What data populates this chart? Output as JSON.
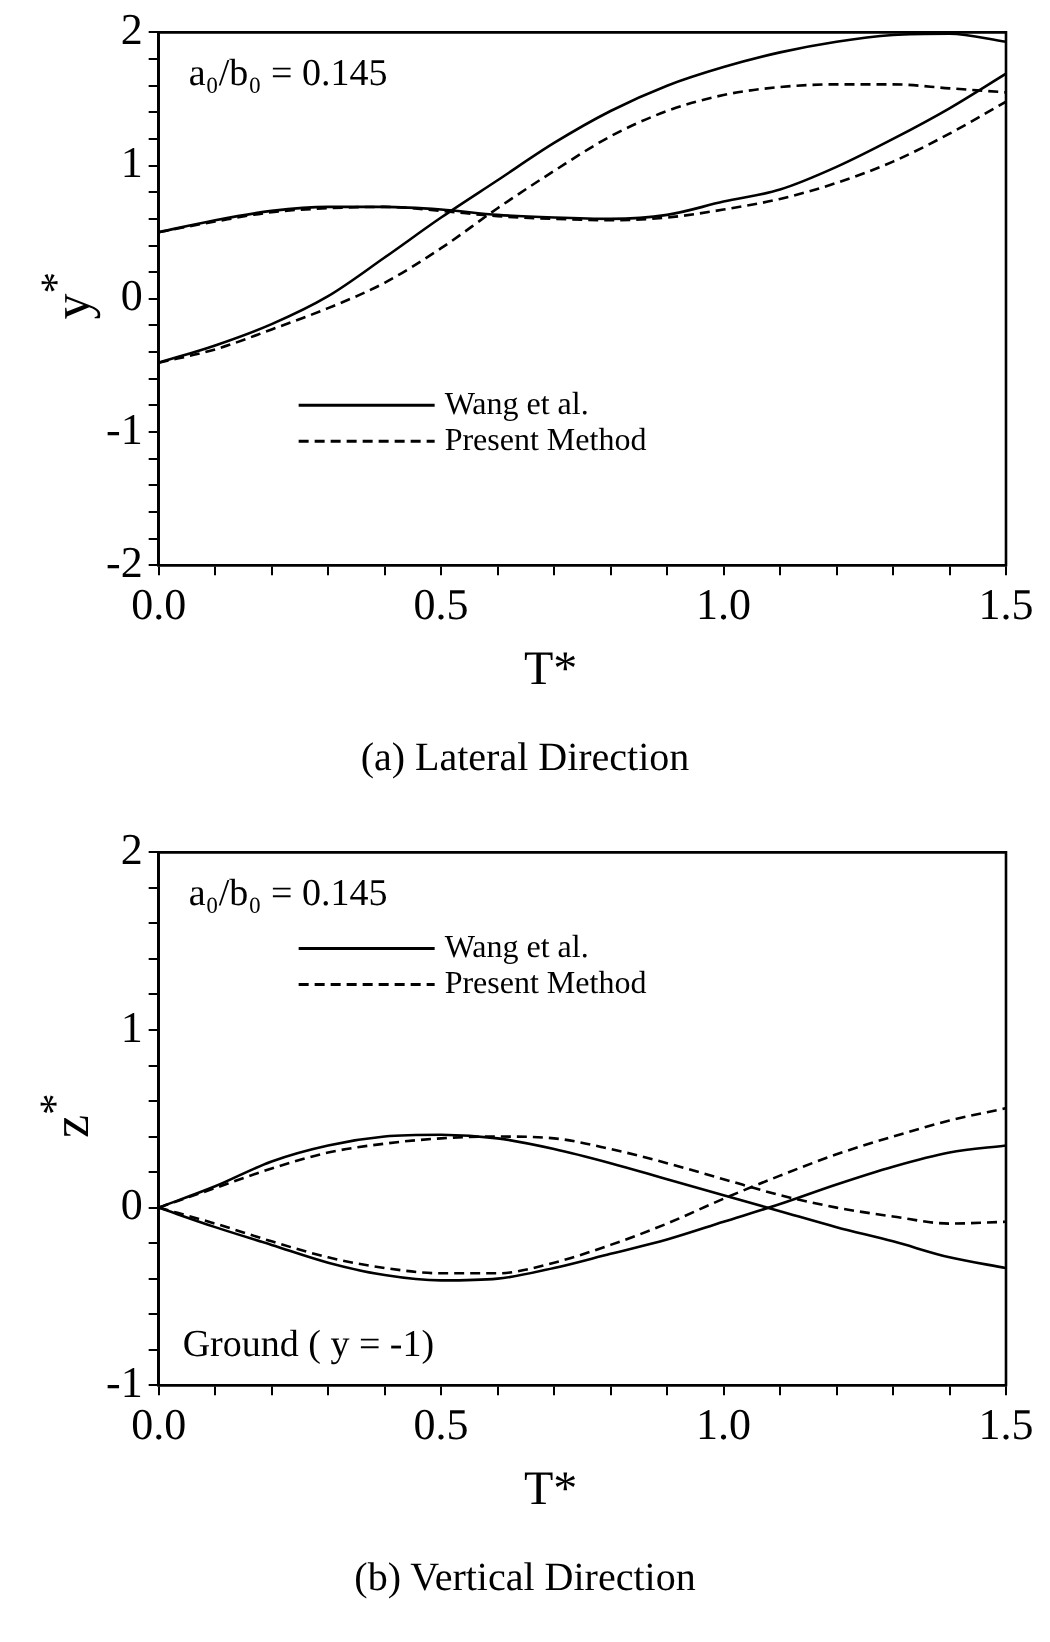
{
  "chart_data": [
    {
      "type": "line",
      "title": "(a)  Lateral  Direction",
      "xlabel": "T*",
      "ylabel": "y$^{*}$",
      "annotations": [
        "a₀/b₀ = 0.145"
      ],
      "legend": "bottom left",
      "grid": false,
      "marker": "none",
      "x": [
        0,
        0.1,
        0.2,
        0.3,
        0.4,
        0.5,
        0.6,
        0.7,
        0.8,
        0.9,
        1.0,
        1.1,
        1.2,
        1.3,
        1.4,
        1.5
      ],
      "xlim": [
        0,
        1.5
      ],
      "xticks": [
        {
          "value": 0,
          "label": "0.0"
        },
        {
          "value": 0.1,
          "label": null
        },
        {
          "value": 0.2,
          "label": null
        },
        {
          "value": 0.3,
          "label": null
        },
        {
          "value": 0.4,
          "label": null
        },
        {
          "value": 0.5,
          "label": "0.5"
        },
        {
          "value": 0.6,
          "label": null
        },
        {
          "value": 0.7,
          "label": null
        },
        {
          "value": 0.8,
          "label": null
        },
        {
          "value": 0.9,
          "label": null
        },
        {
          "value": 1.0,
          "label": "1.0"
        },
        {
          "value": 1.1,
          "label": null
        },
        {
          "value": 1.2,
          "label": null
        },
        {
          "value": 1.3,
          "label": null
        },
        {
          "value": 1.4,
          "label": null
        },
        {
          "value": 1.5,
          "label": "1.5"
        }
      ],
      "ylim": [
        -2,
        2
      ],
      "yticks": [
        -2,
        {
          "value": -1.8,
          "label": null
        },
        {
          "value": -1.6,
          "label": null
        },
        {
          "value": -1.4,
          "label": null
        },
        {
          "value": -1.2,
          "label": null
        },
        -1,
        {
          "value": -0.8,
          "label": null
        },
        {
          "value": -0.6,
          "label": null
        },
        {
          "value": -0.4,
          "label": null
        },
        {
          "value": -0.2,
          "label": null
        },
        0,
        {
          "value": 0.2,
          "label": null
        },
        {
          "value": 0.4,
          "label": null
        },
        {
          "value": 0.6,
          "label": null
        },
        {
          "value": 0.8,
          "label": null
        },
        1,
        {
          "value": 1.2,
          "label": null
        },
        {
          "value": 1.4,
          "label": null
        },
        {
          "value": 1.6,
          "label": null
        },
        {
          "value": 1.8,
          "label": null
        },
        2
      ],
      "series": [
        {
          "name": "Wang et al.",
          "color": "#000000",
          "line_style": "solid",
          "values": [
            0.5,
            0.59,
            0.66,
            0.69,
            0.69,
            0.67,
            0.63,
            0.61,
            0.6,
            0.63,
            0.73,
            0.82,
            0.99,
            1.2,
            1.43,
            1.69
          ]
        },
        {
          "color": "#000000",
          "line_style": "solid",
          "values": [
            -0.48,
            -0.35,
            -0.19,
            0.02,
            0.31,
            0.61,
            0.89,
            1.17,
            1.41,
            1.6,
            1.74,
            1.85,
            1.93,
            1.98,
            1.99,
            1.93
          ]
        },
        {
          "name": "Present Method",
          "color": "#000000",
          "line_style": "dashed",
          "values": [
            0.5,
            0.58,
            0.65,
            0.68,
            0.69,
            0.66,
            0.62,
            0.6,
            0.59,
            0.61,
            0.67,
            0.75,
            0.87,
            1.03,
            1.24,
            1.48
          ]
        },
        {
          "color": "#000000",
          "line_style": "dashed",
          "values": [
            -0.48,
            -0.38,
            -0.23,
            -0.07,
            0.12,
            0.38,
            0.68,
            0.96,
            1.22,
            1.41,
            1.53,
            1.59,
            1.61,
            1.61,
            1.58,
            1.55
          ]
        }
      ]
    },
    {
      "type": "line",
      "title": "(b)  Vertical  Direction",
      "xlabel": "T*",
      "ylabel": "z$^{*}$",
      "annotations": [
        "a₀/b₀ = 0.145",
        "Ground ( y = -1)"
      ],
      "legend": "top left",
      "grid": false,
      "marker": "none",
      "x": [
        0,
        0.1,
        0.2,
        0.3,
        0.4,
        0.5,
        0.6,
        0.7,
        0.8,
        0.9,
        1.0,
        1.1,
        1.2,
        1.3,
        1.4,
        1.5
      ],
      "xlim": [
        0,
        1.5
      ],
      "xticks": [
        {
          "value": 0,
          "label": "0.0"
        },
        {
          "value": 0.1,
          "label": null
        },
        {
          "value": 0.2,
          "label": null
        },
        {
          "value": 0.3,
          "label": null
        },
        {
          "value": 0.4,
          "label": null
        },
        {
          "value": 0.5,
          "label": "0.5"
        },
        {
          "value": 0.6,
          "label": null
        },
        {
          "value": 0.7,
          "label": null
        },
        {
          "value": 0.8,
          "label": null
        },
        {
          "value": 0.9,
          "label": null
        },
        {
          "value": 1.0,
          "label": "1.0"
        },
        {
          "value": 1.1,
          "label": null
        },
        {
          "value": 1.2,
          "label": null
        },
        {
          "value": 1.3,
          "label": null
        },
        {
          "value": 1.4,
          "label": null
        },
        {
          "value": 1.5,
          "label": "1.5"
        }
      ],
      "ylim": [
        -1,
        2
      ],
      "yticks": [
        -1,
        {
          "value": -0.8,
          "label": null
        },
        {
          "value": -0.6,
          "label": null
        },
        {
          "value": -0.4,
          "label": null
        },
        {
          "value": -0.2,
          "label": null
        },
        0,
        {
          "value": 0.2,
          "label": null
        },
        {
          "value": 0.4,
          "label": null
        },
        {
          "value": 0.6,
          "label": null
        },
        {
          "value": 0.8,
          "label": null
        },
        1,
        {
          "value": 1.2,
          "label": null
        },
        {
          "value": 1.4,
          "label": null
        },
        {
          "value": 1.6,
          "label": null
        },
        {
          "value": 1.8,
          "label": null
        },
        2
      ],
      "series": [
        {
          "name": "Wang et al.",
          "color": "#000000",
          "line_style": "solid",
          "values": [
            0,
            0.12,
            0.26,
            0.35,
            0.4,
            0.41,
            0.39,
            0.33,
            0.25,
            0.16,
            0.07,
            -0.02,
            -0.11,
            -0.19,
            -0.28,
            -0.34
          ]
        },
        {
          "color": "#000000",
          "line_style": "solid",
          "values": [
            0,
            -0.11,
            -0.21,
            -0.31,
            -0.38,
            -0.41,
            -0.4,
            -0.34,
            -0.26,
            -0.18,
            -0.08,
            0.02,
            0.13,
            0.23,
            0.31,
            0.35
          ]
        },
        {
          "name": "Present Method",
          "color": "#000000",
          "line_style": "dashed",
          "values": [
            0,
            0.11,
            0.22,
            0.31,
            0.36,
            0.39,
            0.4,
            0.39,
            0.33,
            0.25,
            0.16,
            0.07,
            0,
            -0.05,
            -0.09,
            -0.08
          ]
        },
        {
          "color": "#000000",
          "line_style": "dashed",
          "values": [
            0,
            -0.09,
            -0.19,
            -0.28,
            -0.34,
            -0.37,
            -0.37,
            -0.31,
            -0.21,
            -0.09,
            0.05,
            0.18,
            0.3,
            0.4,
            0.49,
            0.56
          ]
        }
      ]
    }
  ]
}
